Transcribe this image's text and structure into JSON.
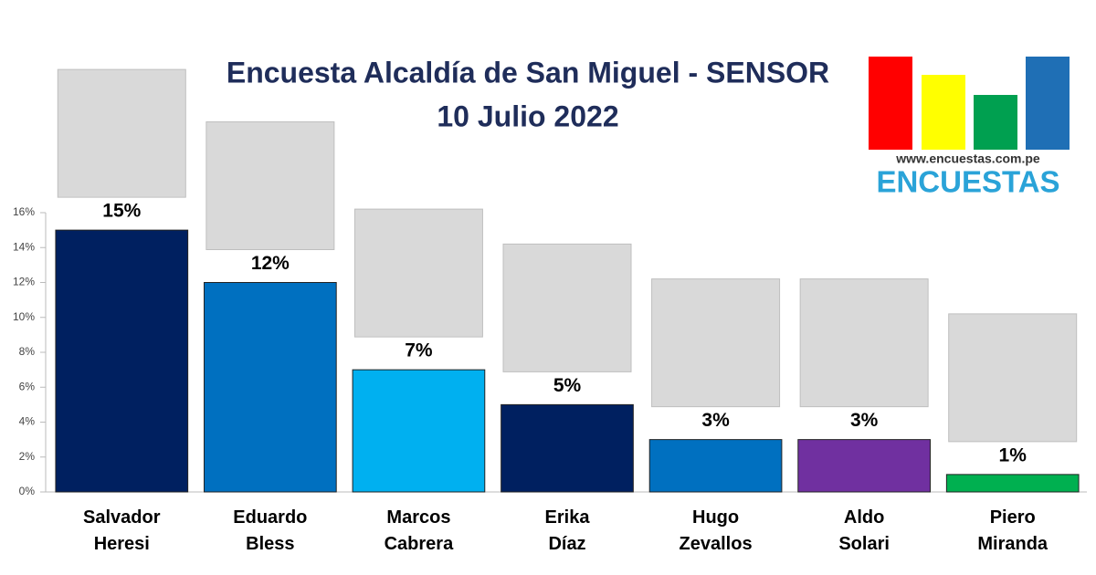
{
  "chart_data": {
    "type": "bar",
    "title": "Encuesta Alcaldía de San Miguel -  SENSOR",
    "subtitle": "10 Julio 2022",
    "source_url": "www.encuestas.com.pe",
    "brand": "ENCUESTAS",
    "categories": [
      "Salvador Heresi",
      "Eduardo Bless",
      "Marcos Cabrera",
      "Erika Díaz",
      "Hugo Zevallos",
      "Aldo Solari",
      "Piero Miranda"
    ],
    "values": [
      15,
      12,
      7,
      5,
      3,
      3,
      1
    ],
    "value_labels": [
      "15%",
      "12%",
      "7%",
      "5%",
      "3%",
      "3%",
      "1%"
    ],
    "colors": [
      "#002060",
      "#0070c0",
      "#00b0f0",
      "#002060",
      "#0070c0",
      "#7030a0",
      "#00b050"
    ],
    "ylim": [
      0,
      16
    ],
    "yticks": [
      {
        "value": 0,
        "label": "0%"
      },
      {
        "value": 2,
        "label": "2%"
      },
      {
        "value": 4,
        "label": "4%"
      },
      {
        "value": 6,
        "label": "6%"
      },
      {
        "value": 8,
        "label": "8%"
      },
      {
        "value": 10,
        "label": "10%"
      },
      {
        "value": 12,
        "label": "12%"
      },
      {
        "value": 14,
        "label": "14%"
      },
      {
        "value": 16,
        "label": "16%"
      }
    ],
    "grid": false
  }
}
